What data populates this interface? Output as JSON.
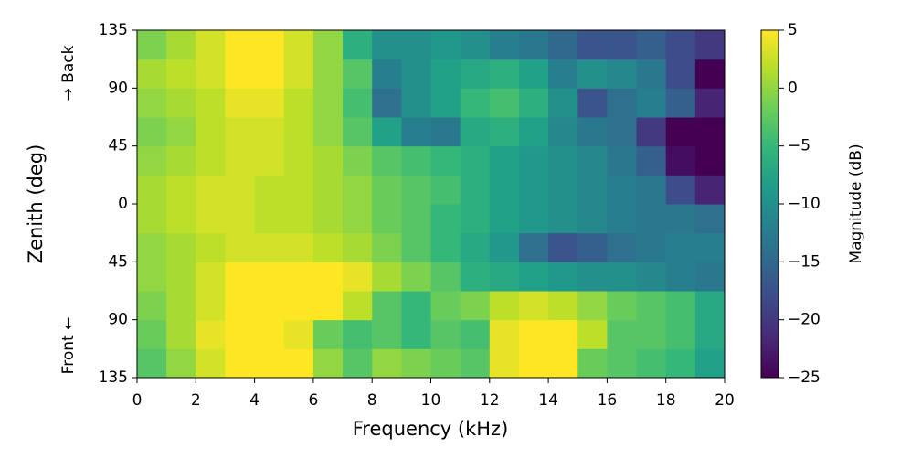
{
  "chart_data": {
    "type": "heatmap",
    "xlabel": "Frequency (kHz)",
    "ylabel": "Zenith (deg)",
    "y_annotations": [
      "→ Back",
      "Front ←"
    ],
    "colorbar_label": "Magnitude (dB)",
    "colormap": "viridis",
    "x": [
      0.5,
      1.5,
      2.5,
      3.5,
      4.5,
      5.5,
      6.5,
      7.5,
      8.5,
      9.5,
      10.5,
      11.5,
      12.5,
      13.5,
      14.5,
      15.5,
      16.5,
      17.5,
      18.5,
      19.5
    ],
    "y": [
      -123.75,
      -101.25,
      -78.75,
      -56.25,
      -33.75,
      -11.25,
      11.25,
      33.75,
      56.25,
      78.75,
      101.25,
      123.75
    ],
    "values": [
      [
        -3,
        0,
        3,
        5,
        5,
        5,
        0,
        -3,
        0,
        -1,
        -2,
        -3,
        4,
        5,
        5,
        -2,
        -3,
        -4,
        -5,
        -8
      ],
      [
        -2,
        1,
        4,
        5,
        5,
        4,
        -2,
        -4,
        -3,
        -5,
        -3,
        -4,
        4,
        5,
        5,
        2,
        -3,
        -3,
        -4,
        -7
      ],
      [
        -1,
        1,
        3,
        5,
        5,
        5,
        5,
        2,
        -3,
        -5,
        -2,
        -1,
        2,
        3,
        2,
        0,
        -2,
        -3,
        -4,
        -7
      ],
      [
        0,
        1,
        3,
        5,
        5,
        5,
        5,
        4,
        1,
        -1,
        -3,
        -6,
        -7,
        -8,
        -9,
        -10,
        -10,
        -11,
        -12,
        -13
      ],
      [
        0,
        1,
        2,
        3,
        3,
        3,
        2,
        1,
        -1,
        -3,
        -5,
        -7,
        -9,
        -14,
        -17,
        -16,
        -14,
        -13,
        -12,
        -12
      ],
      [
        1,
        2,
        3,
        3,
        2,
        2,
        1,
        0,
        -2,
        -3,
        -5,
        -6,
        -8,
        -9,
        -10,
        -11,
        -12,
        -13,
        -13,
        -14
      ],
      [
        1,
        2,
        3,
        3,
        2,
        2,
        1,
        0,
        -2,
        -3,
        -4,
        -6,
        -8,
        -9,
        -10,
        -11,
        -12,
        -13,
        -18,
        -22
      ],
      [
        0,
        1,
        2,
        3,
        3,
        2,
        1,
        -1,
        -3,
        -4,
        -5,
        -6,
        -8,
        -9,
        -10,
        -11,
        -13,
        -16,
        -24,
        -25
      ],
      [
        -1,
        0,
        2,
        3,
        3,
        2,
        0,
        -3,
        -8,
        -12,
        -13,
        -7,
        -6,
        -8,
        -11,
        -13,
        -14,
        -20,
        -25,
        -25
      ],
      [
        0,
        1,
        2,
        4,
        4,
        2,
        0,
        -4,
        -14,
        -10,
        -8,
        -5,
        -4,
        -6,
        -10,
        -17,
        -14,
        -12,
        -16,
        -22
      ],
      [
        1,
        2,
        3,
        5,
        5,
        3,
        0,
        -3,
        -12,
        -10,
        -8,
        -7,
        -6,
        -8,
        -12,
        -10,
        -11,
        -13,
        -18,
        -25
      ],
      [
        -1,
        1,
        3,
        5,
        5,
        3,
        0,
        -6,
        -10,
        -10,
        -9,
        -10,
        -12,
        -13,
        -15,
        -17,
        -17,
        -16,
        -18,
        -20
      ]
    ],
    "xlim": [
      0,
      20
    ],
    "xticks": [
      0,
      2,
      4,
      6,
      8,
      10,
      12,
      14,
      16,
      18,
      20
    ],
    "ylim": [
      -135,
      135
    ],
    "yticks": [
      {
        "value": -135,
        "label": "135"
      },
      {
        "value": -90,
        "label": "90"
      },
      {
        "value": -45,
        "label": "45"
      },
      0,
      45,
      90,
      135
    ],
    "clim": [
      -25,
      5
    ],
    "cticks": [
      {
        "value": -25,
        "label": "−25"
      },
      {
        "value": -20,
        "label": "−20"
      },
      {
        "value": -15,
        "label": "−15"
      },
      {
        "value": -10,
        "label": "−10"
      },
      {
        "value": -5,
        "label": "−5"
      },
      0,
      5
    ]
  }
}
